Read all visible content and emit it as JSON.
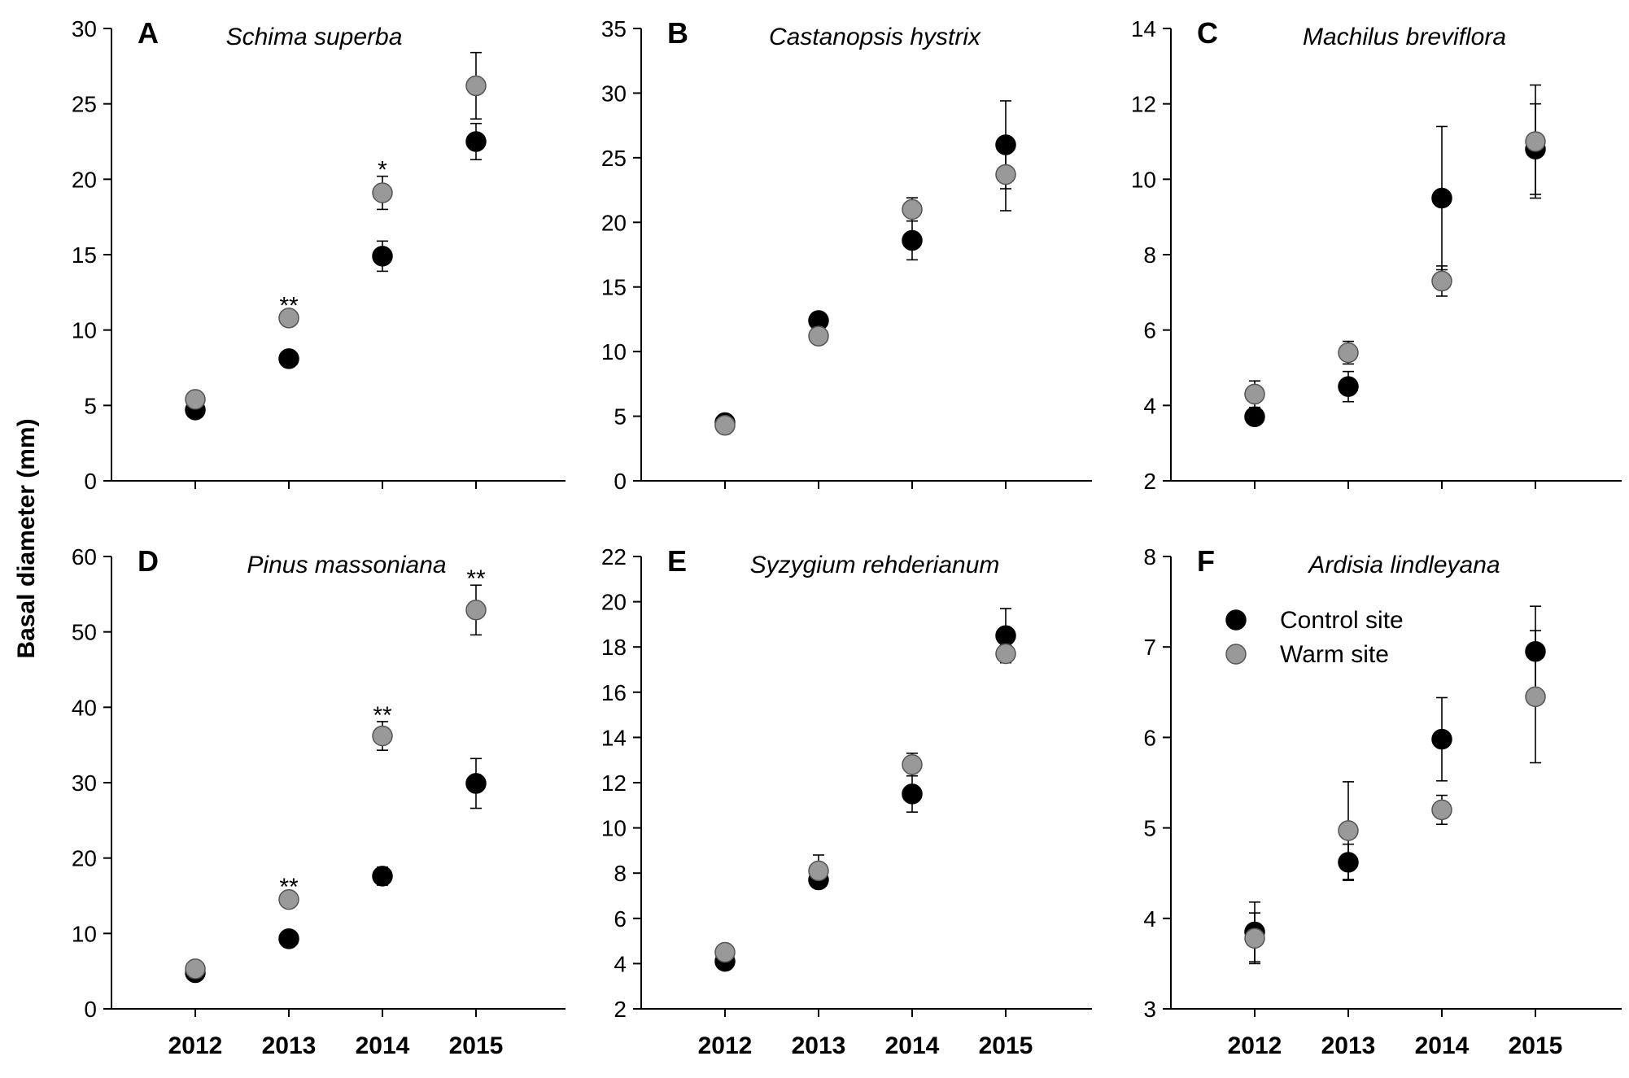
{
  "chart_data": {
    "type": "scatter",
    "ylabel": "Basal diameter (mm)",
    "categories": [
      "2012",
      "2013",
      "2014",
      "2015"
    ],
    "legend": {
      "placement": "inside panel F, top-left",
      "entries": [
        {
          "name": "Control site",
          "color": "#000000"
        },
        {
          "name": "Warm site",
          "color": "#999999"
        }
      ]
    },
    "panels": [
      {
        "letter": "A",
        "title": "Schima superba",
        "ylim": [
          0,
          30
        ],
        "yticks": [
          "0",
          "5",
          "10",
          "15",
          "20",
          "25",
          "30"
        ],
        "series": [
          {
            "name": "Control site",
            "values": [
              4.7,
              8.1,
              14.9,
              22.5
            ],
            "errors": [
              0.3,
              0.4,
              1.0,
              1.2
            ]
          },
          {
            "name": "Warm site",
            "values": [
              5.4,
              10.8,
              19.1,
              26.2
            ],
            "errors": [
              0.3,
              0.4,
              1.1,
              2.2
            ]
          }
        ],
        "significance": [
          "",
          "**",
          "*",
          ""
        ]
      },
      {
        "letter": "B",
        "title": "Castanopsis hystrix",
        "ylim": [
          0,
          35
        ],
        "yticks": [
          "0",
          "5",
          "10",
          "15",
          "20",
          "25",
          "30",
          "35"
        ],
        "series": [
          {
            "name": "Control site",
            "values": [
              4.5,
              12.4,
              18.6,
              26.0
            ],
            "errors": [
              0.3,
              0.5,
              1.5,
              3.4
            ]
          },
          {
            "name": "Warm site",
            "values": [
              4.3,
              11.2,
              21.0,
              23.7
            ],
            "errors": [
              0.3,
              0.4,
              0.9,
              2.8
            ]
          }
        ],
        "significance": [
          "",
          "",
          "",
          ""
        ]
      },
      {
        "letter": "C",
        "title": "Machilus breviflora",
        "ylim": [
          2,
          14
        ],
        "yticks": [
          "2",
          "4",
          "6",
          "8",
          "10",
          "12",
          "14"
        ],
        "series": [
          {
            "name": "Control site",
            "values": [
              3.7,
              4.5,
              9.5,
              10.8
            ],
            "errors": [
              0.2,
              0.4,
              1.9,
              1.2
            ]
          },
          {
            "name": "Warm site",
            "values": [
              4.3,
              5.4,
              7.3,
              11.0
            ],
            "errors": [
              0.35,
              0.3,
              0.4,
              1.5
            ]
          }
        ],
        "significance": [
          "",
          "",
          "",
          ""
        ]
      },
      {
        "letter": "D",
        "title": "Pinus massoniana",
        "ylim": [
          0,
          60
        ],
        "yticks": [
          "0",
          "10",
          "20",
          "30",
          "40",
          "50",
          "60"
        ],
        "series": [
          {
            "name": "Control site",
            "values": [
              4.8,
              9.3,
              17.6,
              29.9
            ],
            "errors": [
              0.3,
              0.5,
              1.2,
              3.3
            ]
          },
          {
            "name": "Warm site",
            "values": [
              5.3,
              14.5,
              36.2,
              52.9
            ],
            "errors": [
              0.3,
              0.8,
              1.9,
              3.3
            ]
          }
        ],
        "significance": [
          "",
          "**",
          "**",
          "**"
        ]
      },
      {
        "letter": "E",
        "title": "Syzygium rehderianum",
        "ylim": [
          2,
          22
        ],
        "yticks": [
          "2",
          "4",
          "6",
          "8",
          "10",
          "12",
          "14",
          "16",
          "18",
          "20",
          "22"
        ],
        "series": [
          {
            "name": "Control site",
            "values": [
              4.1,
              7.7,
              11.5,
              18.5
            ],
            "errors": [
              0.2,
              0.3,
              0.8,
              1.2
            ]
          },
          {
            "name": "Warm site",
            "values": [
              4.5,
              8.1,
              12.8,
              17.7
            ],
            "errors": [
              0.2,
              0.7,
              0.5,
              0.4
            ]
          }
        ],
        "significance": [
          "",
          "",
          "",
          ""
        ]
      },
      {
        "letter": "F",
        "title": "Ardisia lindleyana",
        "ylim": [
          3,
          8
        ],
        "yticks": [
          "3",
          "4",
          "5",
          "6",
          "7",
          "8"
        ],
        "series": [
          {
            "name": "Control site",
            "values": [
              3.85,
              4.62,
              5.98,
              6.95
            ],
            "errors": [
              0.33,
              0.2,
              0.46,
              0.5
            ]
          },
          {
            "name": "Warm site",
            "values": [
              3.78,
              4.97,
              5.2,
              6.45
            ],
            "errors": [
              0.28,
              0.54,
              0.16,
              0.73
            ]
          }
        ],
        "significance": [
          "",
          "",
          "",
          ""
        ]
      }
    ]
  }
}
